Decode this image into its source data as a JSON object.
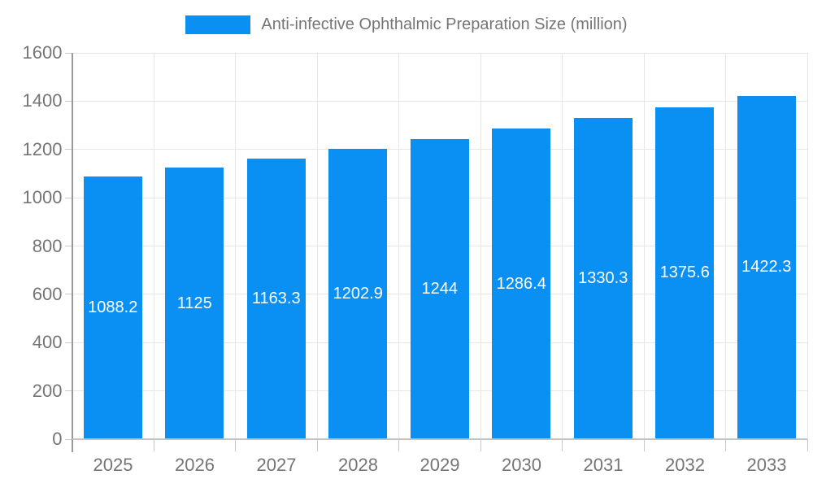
{
  "legend": {
    "label": "Anti-infective Ophthalmic Preparation Size (million)",
    "swatch_color": "#0a8ff2"
  },
  "chart_data": {
    "type": "bar",
    "title": "Anti-infective Ophthalmic Preparation Size (million)",
    "categories": [
      "2025",
      "2026",
      "2027",
      "2028",
      "2029",
      "2030",
      "2031",
      "2032",
      "2033"
    ],
    "values": [
      1088.2,
      1125,
      1163.3,
      1202.9,
      1244,
      1286.4,
      1330.3,
      1375.6,
      1422.3
    ],
    "value_labels": [
      "1088.2",
      "1125",
      "1163.3",
      "1202.9",
      "1244",
      "1286.4",
      "1330.3",
      "1375.6",
      "1422.3"
    ],
    "xlabel": "",
    "ylabel": "",
    "ylim": [
      0,
      1600
    ],
    "yticks": [
      0,
      200,
      400,
      600,
      800,
      1000,
      1200,
      1400,
      1600
    ],
    "grid": true,
    "legend_position": "top-center",
    "bar_color": "#0a8ff2",
    "value_label_color": "#ffffff",
    "axis_text_color": "#757575",
    "gridline_color": "#e6e6e6",
    "yaxis_line_color": "#999999",
    "xaxis_line_color": "#c3c3c3"
  }
}
